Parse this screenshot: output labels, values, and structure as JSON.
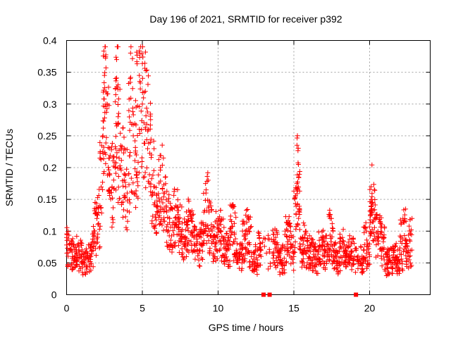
{
  "chart_data": {
    "type": "scatter",
    "title": "Day 196 of 2021, SRMTID for receiver p392",
    "xlabel": "GPS time / hours",
    "ylabel": "SRMTID / TECUs",
    "xlim": [
      0,
      24
    ],
    "ylim": [
      0,
      0.4
    ],
    "grid": true,
    "x_ticks": [
      0,
      5,
      10,
      15,
      20
    ],
    "x_tick_labels": [
      "0",
      "5",
      "10",
      "15",
      "20"
    ],
    "y_ticks": [
      0,
      0.05,
      0.1,
      0.15,
      0.2,
      0.25,
      0.3,
      0.35,
      0.4
    ],
    "y_tick_labels": [
      "0",
      "0.05",
      "0.1",
      "0.15",
      "0.2",
      "0.25",
      "0.3",
      "0.35",
      "0.4"
    ],
    "marker": "plus",
    "color": "#ff0000",
    "zero_markers": {
      "marker": "square",
      "x": [
        13.0,
        13.4,
        19.1
      ],
      "y": [
        0,
        0,
        0
      ]
    },
    "series": [
      {
        "name": "SRMTID p392",
        "x": [
          0.0,
          0.2,
          0.4,
          0.6,
          0.8,
          1.0,
          1.2,
          1.4,
          1.6,
          1.8,
          2.0,
          2.2,
          2.4,
          2.5,
          2.6,
          2.8,
          3.0,
          3.2,
          3.3,
          3.4,
          3.6,
          3.8,
          4.0,
          4.2,
          4.4,
          4.6,
          4.8,
          5.0,
          5.2,
          5.4,
          5.6,
          5.8,
          6.0,
          6.2,
          6.4,
          6.6,
          6.8,
          7.0,
          7.2,
          7.4,
          7.6,
          7.8,
          8.0,
          8.2,
          8.4,
          8.6,
          8.8,
          9.0,
          9.2,
          9.4,
          9.6,
          9.8,
          10.0,
          10.2,
          10.4,
          10.6,
          10.8,
          11.0,
          11.2,
          11.4,
          11.6,
          11.8,
          12.0,
          12.2,
          12.4,
          12.6,
          12.8,
          13.6,
          13.8,
          14.0,
          14.2,
          14.4,
          14.6,
          14.8,
          15.0,
          15.2,
          15.3,
          15.4,
          15.6,
          15.8,
          16.0,
          16.2,
          16.4,
          16.6,
          16.8,
          17.0,
          17.2,
          17.4,
          17.6,
          17.8,
          18.0,
          18.2,
          18.4,
          18.6,
          18.8,
          19.0,
          19.4,
          19.6,
          19.8,
          20.0,
          20.1,
          20.2,
          20.4,
          20.6,
          20.8,
          21.0,
          21.2,
          21.4,
          21.6,
          21.8,
          22.0,
          22.2,
          22.4,
          22.6,
          22.8
        ],
        "y": [
          0.09,
          0.07,
          0.06,
          0.075,
          0.07,
          0.06,
          0.05,
          0.065,
          0.06,
          0.1,
          0.12,
          0.14,
          0.25,
          0.345,
          0.3,
          0.19,
          0.17,
          0.2,
          0.37,
          0.28,
          0.23,
          0.19,
          0.16,
          0.34,
          0.25,
          0.22,
          0.345,
          0.3,
          0.32,
          0.26,
          0.22,
          0.17,
          0.14,
          0.2,
          0.16,
          0.13,
          0.12,
          0.11,
          0.14,
          0.12,
          0.1,
          0.09,
          0.11,
          0.12,
          0.09,
          0.08,
          0.07,
          0.1,
          0.16,
          0.13,
          0.09,
          0.08,
          0.12,
          0.1,
          0.08,
          0.07,
          0.09,
          0.14,
          0.07,
          0.06,
          0.08,
          0.1,
          0.12,
          0.06,
          0.05,
          0.07,
          0.08,
          0.065,
          0.09,
          0.06,
          0.05,
          0.07,
          0.11,
          0.08,
          0.06,
          0.175,
          0.205,
          0.08,
          0.07,
          0.1,
          0.06,
          0.08,
          0.05,
          0.07,
          0.09,
          0.06,
          0.08,
          0.12,
          0.07,
          0.06,
          0.05,
          0.09,
          0.07,
          0.06,
          0.08,
          0.06,
          0.05,
          0.07,
          0.1,
          0.06,
          0.17,
          0.145,
          0.12,
          0.09,
          0.11,
          0.04,
          0.06,
          0.05,
          0.07,
          0.06,
          0.05,
          0.12,
          0.08,
          0.06,
          0.12
        ]
      }
    ]
  }
}
